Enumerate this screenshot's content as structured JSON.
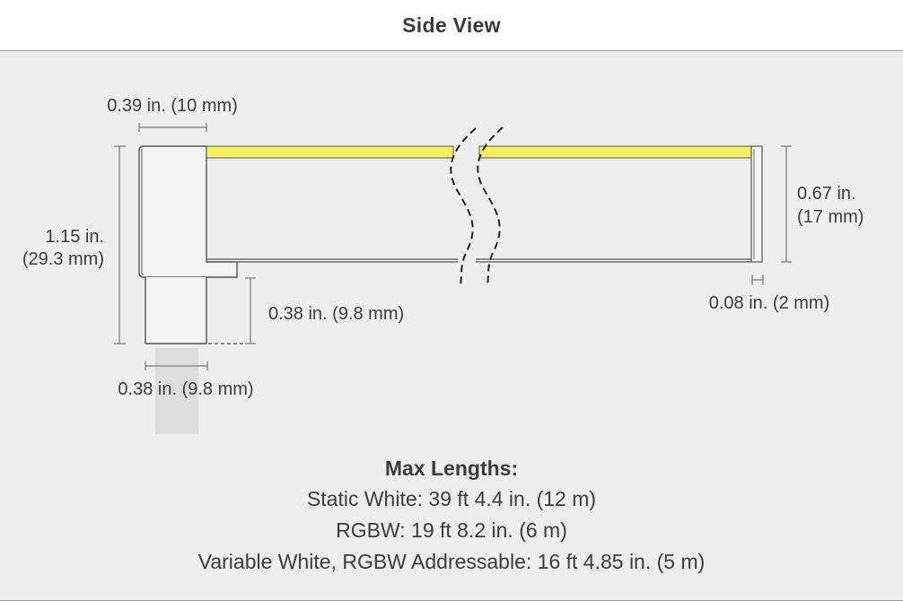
{
  "header": {
    "title": "Side View"
  },
  "diagram": {
    "dimensions": {
      "top_width": "0.39 in. (10 mm)",
      "overall_height_line1": "1.15 in.",
      "overall_height_line2": "(29.3 mm)",
      "leg_height": "0.38 in. (9.8 mm)",
      "leg_width": "0.38 in. (9.8 mm)",
      "channel_height_line1": "0.67 in.",
      "channel_height_line2": "(17 mm)",
      "end_thickness": "0.08 in. (2 mm)"
    },
    "colors": {
      "led_strip": "#f7ef5e",
      "outline": "#555555",
      "dimension_line": "#777777"
    }
  },
  "max_lengths": {
    "heading": "Max Lengths:",
    "items": [
      "Static White: 39 ft 4.4 in. (12 m)",
      "RGBW: 19 ft 8.2 in. (6 m)",
      "Variable White, RGBW Addressable: 16 ft 4.85 in. (5 m)"
    ]
  }
}
